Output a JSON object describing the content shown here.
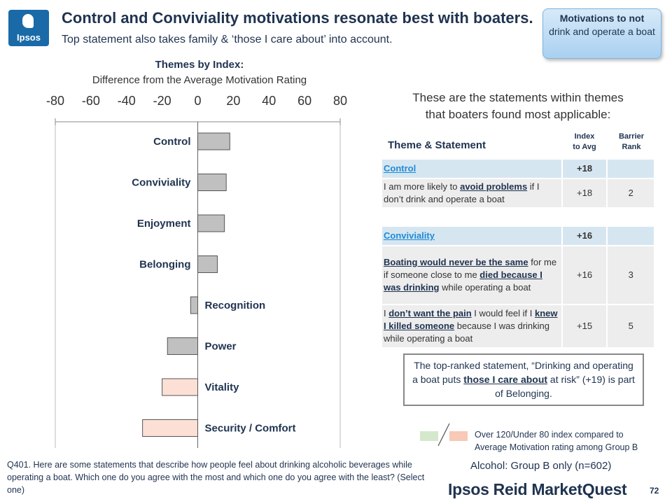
{
  "logo": {
    "text": "Ipsos"
  },
  "header": {
    "title": "Control and Conviviality motivations resonate best with boaters.",
    "subtitle": "Top statement also takes family & ‘those I care about’ into account."
  },
  "pill": {
    "line1": "Motivations to not",
    "line2": "drink and operate a boat"
  },
  "chart_data": {
    "type": "bar",
    "orientation": "horizontal",
    "title": "Themes by Index:",
    "subtitle": "Difference from the Average Motivation Rating",
    "categories": [
      "Control",
      "Conviviality",
      "Enjoyment",
      "Belonging",
      "Recognition",
      "Power",
      "Vitality",
      "Security / Comfort"
    ],
    "values": [
      18,
      16,
      15,
      11,
      -4,
      -17,
      -20,
      -31
    ],
    "xlim": [
      -80,
      80
    ],
    "ticks": [
      -80,
      -60,
      -40,
      -20,
      0,
      20,
      40,
      60,
      80
    ],
    "tick_labels": [
      "-80",
      "-60",
      "-40",
      "-20",
      "0",
      "20",
      "40",
      "60",
      "80"
    ],
    "colors": {
      "normal": "#c0c0c0",
      "under80": "#fce0d6",
      "over120": "#d6e8cc",
      "outline": "#555555"
    },
    "highlight": [
      "normal",
      "normal",
      "normal",
      "normal",
      "normal",
      "normal",
      "under80",
      "under80"
    ],
    "grid": false
  },
  "statements": {
    "heading_line1": "These are the statements within themes",
    "heading_line2": "that boaters found most applicable:",
    "col_theme": "Theme & Statement",
    "col_index_line1": "Index",
    "col_index_line2": "to Avg",
    "col_rank_line1": "Barrier",
    "col_rank_line2": "Rank",
    "control": {
      "theme": "Control",
      "theme_index": "+18",
      "s1_a": "I am more likely to ",
      "s1_hl1": "avoid problems",
      "s1_b": " if I don’t drink and operate a boat",
      "s1_index": "+18",
      "s1_rank": "2"
    },
    "conviviality": {
      "theme": "Conviviality",
      "theme_index": "+16",
      "s1_hl1": "Boating would never be the same",
      "s1_a": " for me if someone close to me ",
      "s1_hl2": "died because I was drinking",
      "s1_b": " while operating a boat",
      "s1_index": "+16",
      "s1_rank": "3",
      "s2_a": "I ",
      "s2_hl1": "don’t want the pain",
      "s2_b": " I would feel if I ",
      "s2_hl2": "knew I killed someone",
      "s2_c": " because I was drinking while operating a boat",
      "s2_index": "+15",
      "s2_rank": "5"
    }
  },
  "callout": {
    "a": "The top-ranked statement, “Drinking and operating a boat puts ",
    "hl": "those I care about",
    "b": " at risk” (+19) is part of Belonging."
  },
  "legend": {
    "line1": "Over 120/Under 80 index compared to",
    "line2": "Average Motivation rating among Group B"
  },
  "base_note": "Alcohol: Group B only (n=602)",
  "question": "Q401. Here are some statements that describe how people feel about drinking alcoholic beverages while operating a boat.  Which one do you agree with the most and which one do you agree with the least?   (Select one)",
  "footer": {
    "brand": "Ipsos Reid MarketQuest",
    "page": "72"
  }
}
